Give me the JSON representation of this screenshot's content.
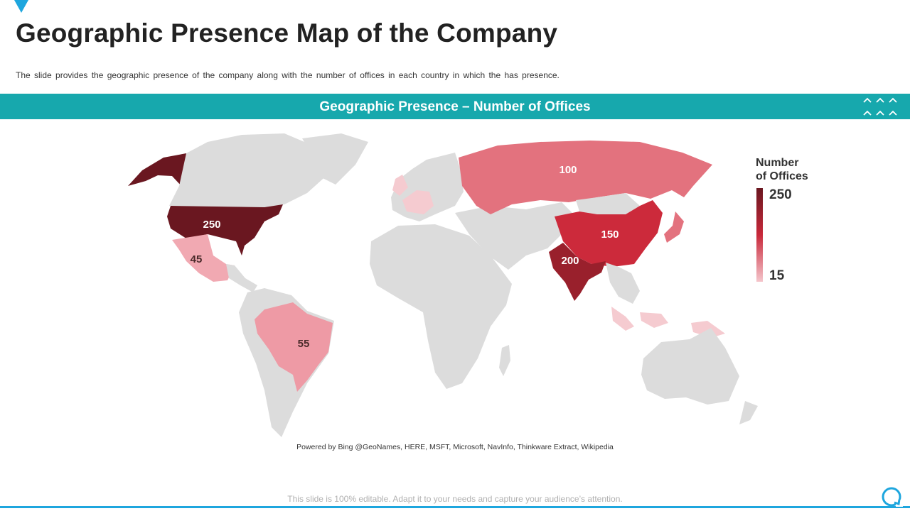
{
  "header": {
    "title": "Geographic Presence Map of the Company",
    "subtitle": "The slide provides the geographic presence of the company along with the number of offices in each country in which the has presence."
  },
  "map": {
    "band_title": "Geographic Presence – Number of Offices",
    "attribution": "Powered by Bing @GeoNames, HERE, MSFT, Microsoft, NavInfo, Thinkware Extract, Wikipedia",
    "legend": {
      "title_line1": "Number",
      "title_line2": "of Offices",
      "max": "250",
      "min": "15"
    },
    "countries": [
      {
        "name": "United States",
        "offices": 250,
        "label": "250",
        "color": "#6a1720"
      },
      {
        "name": "Mexico",
        "offices": 45,
        "label": "45",
        "color": "#f1a9b2"
      },
      {
        "name": "Brazil",
        "offices": 55,
        "label": "55",
        "color": "#ee9aa5"
      },
      {
        "name": "Russia",
        "offices": 100,
        "label": "100",
        "color": "#e3727e"
      },
      {
        "name": "China",
        "offices": 150,
        "label": "150",
        "color": "#cc2a3b"
      },
      {
        "name": "India",
        "offices": 200,
        "label": "200",
        "color": "#99202c"
      }
    ],
    "colors": {
      "land": "#dcdcdc",
      "light_presence": "#f5cbd0",
      "band": "#17a8ad",
      "accent": "#1ea6de"
    }
  },
  "footer": {
    "note": "This slide is 100% editable. Adapt it to your needs and capture your audience’s attention."
  }
}
